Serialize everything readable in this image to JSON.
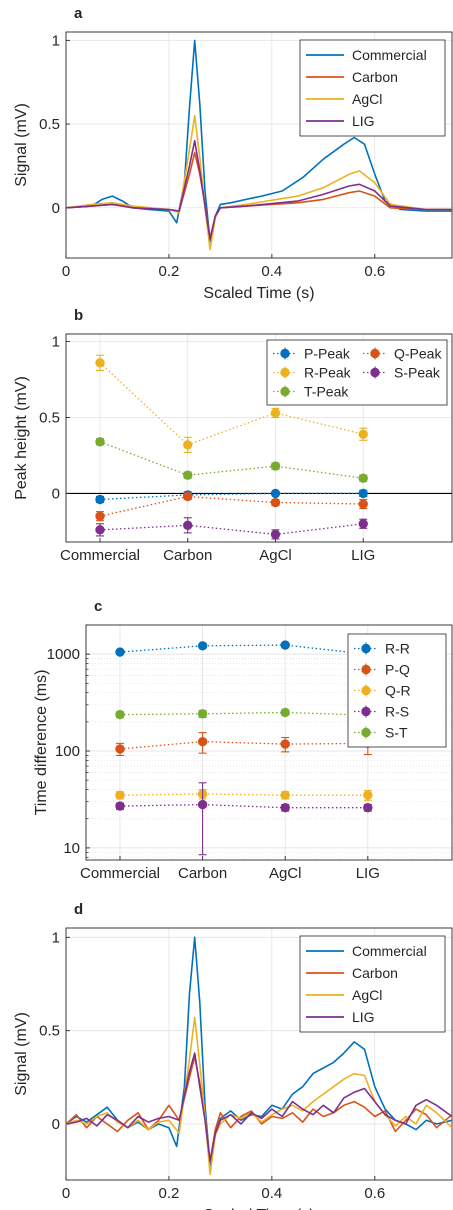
{
  "colors": {
    "blue": "#0072BD",
    "orange": "#D95319",
    "yellow": "#EDB120",
    "purple": "#7E2F8E",
    "green": "#77AC30"
  },
  "chart_data": [
    {
      "panel": "a",
      "type": "line",
      "xlabel": "Scaled Time (s)",
      "ylabel": "Signal (mV)",
      "xlim": [
        0,
        0.75
      ],
      "ylim": [
        -0.3,
        1.05
      ],
      "xticks": [
        0,
        0.2,
        0.4,
        0.6
      ],
      "xtick_labels": [
        "0",
        "0.2",
        "0.4",
        "0.6"
      ],
      "yticks": [
        0,
        0.5,
        1
      ],
      "ytick_labels": [
        "0",
        "0.5",
        "1"
      ],
      "grid": true,
      "legend": "top-right",
      "series": [
        {
          "name": "Commercial",
          "color": "blue",
          "x": [
            0,
            0.05,
            0.07,
            0.09,
            0.11,
            0.13,
            0.16,
            0.2,
            0.215,
            0.23,
            0.24,
            0.25,
            0.26,
            0.27,
            0.28,
            0.29,
            0.3,
            0.32,
            0.35,
            0.38,
            0.42,
            0.46,
            0.5,
            0.54,
            0.56,
            0.58,
            0.6,
            0.62,
            0.65,
            0.7,
            0.75
          ],
          "y": [
            0,
            0.01,
            0.05,
            0.07,
            0.04,
            0,
            -0.01,
            -0.02,
            -0.09,
            0.15,
            0.6,
            1.0,
            0.62,
            0.1,
            -0.2,
            -0.05,
            0.02,
            0.03,
            0.05,
            0.07,
            0.1,
            0.18,
            0.29,
            0.38,
            0.42,
            0.38,
            0.2,
            0.04,
            -0.01,
            -0.02,
            -0.02
          ]
        },
        {
          "name": "Carbon",
          "color": "orange",
          "x": [
            0,
            0.05,
            0.09,
            0.13,
            0.2,
            0.22,
            0.24,
            0.25,
            0.26,
            0.27,
            0.28,
            0.29,
            0.3,
            0.35,
            0.45,
            0.5,
            0.55,
            0.57,
            0.6,
            0.63,
            0.7,
            0.75
          ],
          "y": [
            0,
            0.01,
            0.02,
            0,
            -0.01,
            -0.02,
            0.2,
            0.33,
            0.2,
            0.02,
            -0.18,
            -0.05,
            0,
            0.01,
            0.03,
            0.05,
            0.09,
            0.1,
            0.07,
            0,
            -0.01,
            -0.01
          ]
        },
        {
          "name": "AgCl",
          "color": "yellow",
          "x": [
            0,
            0.05,
            0.09,
            0.13,
            0.2,
            0.22,
            0.24,
            0.25,
            0.26,
            0.27,
            0.28,
            0.29,
            0.3,
            0.35,
            0.45,
            0.5,
            0.55,
            0.57,
            0.6,
            0.63,
            0.7,
            0.75
          ],
          "y": [
            0,
            0.02,
            0.03,
            0.01,
            -0.01,
            -0.03,
            0.35,
            0.55,
            0.3,
            0,
            -0.25,
            -0.06,
            0,
            0.02,
            0.07,
            0.12,
            0.2,
            0.22,
            0.15,
            0.02,
            -0.01,
            -0.01
          ]
        },
        {
          "name": "LIG",
          "color": "purple",
          "x": [
            0,
            0.05,
            0.09,
            0.13,
            0.2,
            0.22,
            0.24,
            0.25,
            0.26,
            0.27,
            0.28,
            0.29,
            0.3,
            0.35,
            0.45,
            0.5,
            0.55,
            0.57,
            0.6,
            0.63,
            0.7,
            0.75
          ],
          "y": [
            0,
            0.01,
            0.02,
            0,
            -0.01,
            -0.02,
            0.25,
            0.4,
            0.22,
            0.01,
            -0.19,
            -0.05,
            0,
            0.01,
            0.04,
            0.08,
            0.13,
            0.14,
            0.1,
            0.01,
            -0.01,
            -0.01
          ]
        }
      ]
    },
    {
      "panel": "b",
      "type": "scatter",
      "xlabel": "",
      "ylabel": "Peak height (mV)",
      "categories": [
        "Commercial",
        "Carbon",
        "AgCl",
        "LIG"
      ],
      "ylim": [
        -0.32,
        1.05
      ],
      "yticks": [
        0,
        0.5,
        1
      ],
      "ytick_labels": [
        "0",
        "0.5",
        "1"
      ],
      "zero_line": true,
      "grid": true,
      "legend": "top-right",
      "legend_columns": 2,
      "series": [
        {
          "name": "P-Peak",
          "color": "blue",
          "values": [
            -0.04,
            -0.01,
            0.0,
            0.0
          ],
          "err": [
            0.02,
            0.02,
            0.01,
            0.02
          ]
        },
        {
          "name": "Q-Peak",
          "color": "orange",
          "values": [
            -0.15,
            -0.02,
            -0.06,
            -0.07
          ],
          "err": [
            0.03,
            0.02,
            0.02,
            0.03
          ]
        },
        {
          "name": "R-Peak",
          "color": "yellow",
          "values": [
            0.86,
            0.32,
            0.53,
            0.39
          ],
          "err": [
            0.05,
            0.05,
            0.03,
            0.04
          ]
        },
        {
          "name": "S-Peak",
          "color": "purple",
          "values": [
            -0.24,
            -0.21,
            -0.27,
            -0.2
          ],
          "err": [
            0.04,
            0.05,
            0.03,
            0.03
          ]
        },
        {
          "name": "T-Peak",
          "color": "green",
          "values": [
            0.34,
            0.12,
            0.18,
            0.1
          ],
          "err": [
            0.02,
            0.02,
            0.02,
            0.02
          ]
        }
      ]
    },
    {
      "panel": "c",
      "type": "scatter",
      "xlabel": "",
      "ylabel": "Time difference (ms)",
      "categories": [
        "Commercial",
        "Carbon",
        "AgCl",
        "LIG"
      ],
      "yscale": "log",
      "ylim": [
        7.5,
        2000
      ],
      "yticks": [
        10,
        100,
        1000
      ],
      "ytick_labels": [
        "10",
        "100",
        "1000"
      ],
      "grid": true,
      "legend": "top-right",
      "series": [
        {
          "name": "R-R",
          "color": "blue",
          "values": [
            1050,
            1220,
            1240,
            1000
          ],
          "err_low": [
            40,
            30,
            30,
            30
          ],
          "err_high": [
            40,
            30,
            30,
            30
          ]
        },
        {
          "name": "P-Q",
          "color": "orange",
          "values": [
            105,
            125,
            118,
            120
          ],
          "err_low": [
            15,
            30,
            20,
            28
          ],
          "err_high": [
            15,
            30,
            20,
            28
          ]
        },
        {
          "name": "Q-R",
          "color": "yellow",
          "values": [
            35,
            36,
            35,
            35
          ],
          "err_low": [
            3,
            4,
            3,
            4
          ],
          "err_high": [
            3,
            4,
            3,
            4
          ]
        },
        {
          "name": "R-S",
          "color": "purple",
          "values": [
            27,
            28,
            26,
            26
          ],
          "err_low": [
            2,
            19.5,
            2,
            2
          ],
          "err_high": [
            2,
            19,
            2,
            2
          ]
        },
        {
          "name": "S-T",
          "color": "green",
          "values": [
            238,
            242,
            250,
            235
          ],
          "err_low": [
            15,
            20,
            15,
            20
          ],
          "err_high": [
            15,
            20,
            15,
            20
          ]
        }
      ]
    },
    {
      "panel": "d",
      "type": "line",
      "xlabel": "Scaled Time (s)",
      "ylabel": "Signal (mV)",
      "xlim": [
        0,
        0.75
      ],
      "ylim": [
        -0.3,
        1.05
      ],
      "xticks": [
        0,
        0.2,
        0.4,
        0.6
      ],
      "xtick_labels": [
        "0",
        "0.2",
        "0.4",
        "0.6"
      ],
      "yticks": [
        0,
        0.5,
        1
      ],
      "ytick_labels": [
        "0",
        "0.5",
        "1"
      ],
      "grid": true,
      "legend": "top-right",
      "series": [
        {
          "name": "Commercial",
          "color": "blue",
          "x": [
            0,
            0.02,
            0.04,
            0.06,
            0.08,
            0.1,
            0.12,
            0.14,
            0.16,
            0.18,
            0.2,
            0.215,
            0.23,
            0.24,
            0.25,
            0.26,
            0.27,
            0.28,
            0.29,
            0.3,
            0.32,
            0.34,
            0.36,
            0.38,
            0.4,
            0.42,
            0.44,
            0.46,
            0.48,
            0.5,
            0.52,
            0.54,
            0.56,
            0.58,
            0.6,
            0.62,
            0.64,
            0.66,
            0.68,
            0.7,
            0.72,
            0.75
          ],
          "y": [
            0,
            0.04,
            0.01,
            0.05,
            0.09,
            0.02,
            -0.02,
            0.01,
            -0.03,
            0.0,
            -0.02,
            -0.12,
            0.2,
            0.7,
            1.0,
            0.65,
            0.1,
            -0.22,
            -0.04,
            0.03,
            0.07,
            0.02,
            0.05,
            0.04,
            0.1,
            0.08,
            0.16,
            0.2,
            0.27,
            0.3,
            0.33,
            0.38,
            0.44,
            0.4,
            0.2,
            0.08,
            0.02,
            0.0,
            -0.03,
            0.02,
            0.0,
            0.02
          ]
        },
        {
          "name": "Carbon",
          "color": "orange",
          "x": [
            0,
            0.02,
            0.04,
            0.06,
            0.08,
            0.1,
            0.12,
            0.14,
            0.16,
            0.18,
            0.2,
            0.22,
            0.24,
            0.25,
            0.26,
            0.27,
            0.28,
            0.29,
            0.3,
            0.32,
            0.34,
            0.36,
            0.38,
            0.4,
            0.42,
            0.44,
            0.46,
            0.48,
            0.5,
            0.52,
            0.54,
            0.56,
            0.58,
            0.6,
            0.62,
            0.64,
            0.66,
            0.68,
            0.7,
            0.72,
            0.75
          ],
          "y": [
            0.0,
            0.05,
            -0.02,
            0.04,
            0.0,
            -0.04,
            0.02,
            0.06,
            -0.03,
            0.02,
            0.1,
            0.02,
            0.25,
            0.36,
            0.22,
            0.05,
            -0.2,
            -0.03,
            0.06,
            -0.02,
            0.04,
            0.07,
            0.0,
            0.04,
            0.03,
            0.06,
            0.01,
            0.08,
            0.04,
            0.06,
            0.1,
            0.12,
            0.09,
            0.04,
            0.07,
            -0.04,
            0.02,
            0.08,
            0.05,
            -0.02,
            0.05
          ]
        },
        {
          "name": "AgCl",
          "color": "yellow",
          "x": [
            0,
            0.02,
            0.04,
            0.06,
            0.08,
            0.1,
            0.12,
            0.14,
            0.16,
            0.18,
            0.2,
            0.22,
            0.24,
            0.25,
            0.26,
            0.27,
            0.28,
            0.29,
            0.3,
            0.32,
            0.34,
            0.36,
            0.38,
            0.4,
            0.42,
            0.44,
            0.46,
            0.48,
            0.5,
            0.52,
            0.54,
            0.56,
            0.58,
            0.6,
            0.62,
            0.64,
            0.66,
            0.68,
            0.7,
            0.72,
            0.75
          ],
          "y": [
            0.0,
            0.02,
            0.0,
            0.04,
            0.06,
            0.01,
            -0.02,
            0.02,
            -0.03,
            0.01,
            0.02,
            -0.05,
            0.35,
            0.57,
            0.32,
            0.04,
            -0.27,
            -0.06,
            0.0,
            0.05,
            0.03,
            0.06,
            0.01,
            0.05,
            0.08,
            0.1,
            0.07,
            0.12,
            0.16,
            0.2,
            0.24,
            0.27,
            0.26,
            0.12,
            0.05,
            -0.01,
            0.04,
            0.0,
            0.1,
            0.06,
            -0.02
          ]
        },
        {
          "name": "LIG",
          "color": "purple",
          "x": [
            0,
            0.02,
            0.04,
            0.06,
            0.08,
            0.1,
            0.12,
            0.14,
            0.16,
            0.18,
            0.2,
            0.22,
            0.24,
            0.25,
            0.26,
            0.27,
            0.28,
            0.29,
            0.3,
            0.32,
            0.34,
            0.36,
            0.38,
            0.4,
            0.42,
            0.44,
            0.46,
            0.48,
            0.5,
            0.52,
            0.54,
            0.56,
            0.58,
            0.6,
            0.62,
            0.64,
            0.66,
            0.68,
            0.7,
            0.72,
            0.75
          ],
          "y": [
            0.0,
            0.01,
            0.03,
            -0.01,
            0.05,
            0.02,
            -0.02,
            0.04,
            0.01,
            0.03,
            0.04,
            0.02,
            0.28,
            0.38,
            0.2,
            0.02,
            -0.2,
            -0.05,
            0.02,
            0.05,
            0.0,
            0.06,
            0.03,
            0.08,
            0.04,
            0.12,
            0.08,
            0.05,
            0.1,
            0.06,
            0.14,
            0.17,
            0.19,
            0.12,
            0.05,
            0.02,
            0.0,
            0.1,
            0.13,
            0.1,
            0.04
          ]
        }
      ]
    }
  ]
}
